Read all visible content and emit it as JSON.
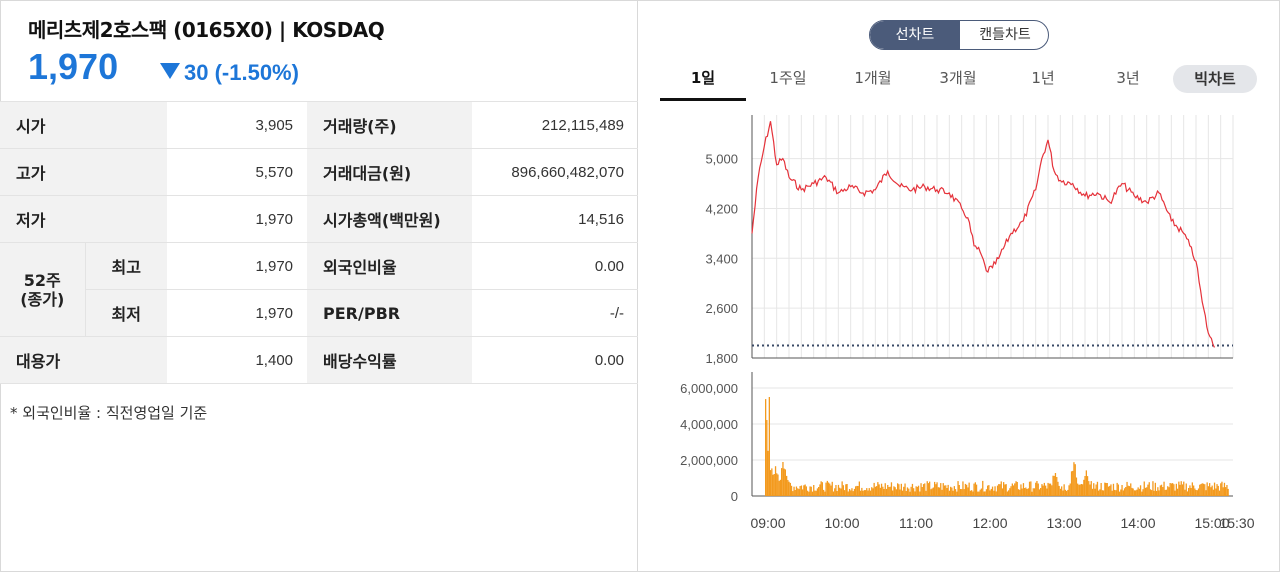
{
  "header": {
    "stock_name": "메리츠제2호스팩 (0165X0) | KOSDAQ",
    "price": "1,970",
    "change": "30 (-1.50%)",
    "change_direction": "down",
    "down_color": "#1d76d8"
  },
  "table": {
    "open_label": "시가",
    "open_value": "3,905",
    "high_label": "고가",
    "high_value": "5,570",
    "low_label": "저가",
    "low_value": "1,970",
    "week52_label_line1": "52주",
    "week52_label_line2": "(종가)",
    "week52_high_label": "최고",
    "week52_high_value": "1,970",
    "week52_low_label": "최저",
    "week52_low_value": "1,970",
    "substitute_label": "대용가",
    "substitute_value": "1,400",
    "volume_label": "거래량(주)",
    "volume_value": "212,115,489",
    "amount_label": "거래대금(원)",
    "amount_value": "896,660,482,070",
    "mktcap_label": "시가총액(백만원)",
    "mktcap_value": "14,516",
    "foreign_label": "외국인비율",
    "foreign_value": "0.00",
    "perpbr_label": "PER/PBR",
    "perpbr_value": "-/-",
    "dividend_label": "배당수익률",
    "dividend_value": "0.00"
  },
  "note": "* 외국인비율 : 직전영업일 기준",
  "chart_toggle": {
    "line": "선차트",
    "candle": "캔들차트",
    "active": "line"
  },
  "period_tabs": [
    "1일",
    "1주일",
    "1개월",
    "3개월",
    "1년",
    "3년"
  ],
  "period_active": "1일",
  "big_chart_button": "빅차트",
  "chart_data": [
    {
      "type": "line",
      "x": [
        "09:00",
        "09:05",
        "09:10",
        "09:15",
        "09:20",
        "09:25",
        "09:30",
        "09:40",
        "09:50",
        "10:00",
        "10:10",
        "10:20",
        "10:30",
        "10:40",
        "10:50",
        "11:00",
        "11:10",
        "11:20",
        "11:30",
        "11:40",
        "11:50",
        "11:55",
        "12:00",
        "12:05",
        "12:10",
        "12:15",
        "12:20",
        "12:30",
        "12:40",
        "12:50",
        "12:55",
        "13:00",
        "13:05",
        "13:10",
        "13:20",
        "13:30",
        "13:40",
        "13:50",
        "14:00",
        "14:10",
        "14:20",
        "14:30",
        "14:40",
        "14:50",
        "14:55",
        "15:00",
        "15:05",
        "15:10",
        "15:15"
      ],
      "y": [
        3800,
        4700,
        5200,
        5600,
        4900,
        5000,
        4700,
        4500,
        4600,
        4700,
        4450,
        4550,
        4450,
        4500,
        4800,
        4550,
        4500,
        4550,
        4500,
        4450,
        4200,
        4050,
        3600,
        3500,
        3200,
        3250,
        3400,
        3800,
        4000,
        4500,
        5000,
        5300,
        4800,
        4650,
        4600,
        4400,
        4450,
        4300,
        4600,
        4400,
        4300,
        4450,
        4000,
        3800,
        3600,
        3350,
        2700,
        2200,
        1970
      ],
      "ylim": [
        1800,
        5700
      ],
      "y_ticks": [
        "5,000",
        "4,200",
        "3,400",
        "2,600",
        "1,800"
      ],
      "x_ticks": [
        "09:00",
        "10:00",
        "11:00",
        "12:00",
        "13:00",
        "14:00",
        "15:00",
        "15:30"
      ],
      "prev_close": 2000,
      "line_color": "#e5323a",
      "ref_line_color": "#3a4a66"
    },
    {
      "type": "bar",
      "ylim": [
        0,
        6000000
      ],
      "y_ticks": [
        "6,000,000",
        "4,000,000",
        "2,000,000",
        "0"
      ],
      "bar_color": "#f39a1e",
      "spikes": [
        {
          "x": "09:00",
          "y": 5500000
        },
        {
          "x": "09:03",
          "y": 2600000
        },
        {
          "x": "09:08",
          "y": 2000000
        },
        {
          "x": "09:15",
          "y": 2400000
        },
        {
          "x": "12:55",
          "y": 1700000
        },
        {
          "x": "13:10",
          "y": 2200000
        },
        {
          "x": "13:20",
          "y": 1500000
        }
      ],
      "typical_volume": 600000
    }
  ]
}
